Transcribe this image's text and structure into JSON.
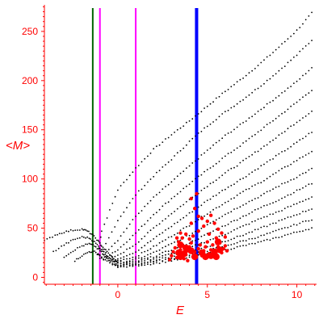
{
  "chart_data": {
    "type": "scatter",
    "title": "",
    "xlabel": "E",
    "ylabel": "<M>",
    "xlim": [
      -4.1,
      11.1
    ],
    "ylim": [
      -7,
      277
    ],
    "xticks": [
      0,
      5,
      10
    ],
    "yticks": [
      0,
      50,
      100,
      150,
      200,
      250
    ],
    "grid": false,
    "legend": "none",
    "colors": {
      "axes": "#ff0000",
      "band_points": "#000000",
      "highlight_points": "#ff0000",
      "line_green": "#006400",
      "line_magenta": "#ff00ff",
      "line_blue": "#0000ff"
    },
    "vertical_lines": [
      {
        "x": -1.4,
        "color": "#006400",
        "width": 2
      },
      {
        "x": -1.0,
        "color": "#ff00ff",
        "width": 2
      },
      {
        "x": 1.0,
        "color": "#ff00ff",
        "width": 2
      },
      {
        "x": 4.4,
        "color": "#0000ff",
        "width": 4
      }
    ],
    "series": [
      {
        "values": [
          [
            -1.1,
            24
          ],
          [
            -0.9,
            47
          ],
          [
            0,
            89
          ],
          [
            1,
            111
          ],
          [
            2,
            130
          ],
          [
            3,
            145
          ],
          [
            4,
            159
          ],
          [
            5,
            174
          ],
          [
            6,
            189
          ],
          [
            7,
            203
          ],
          [
            8,
            218
          ],
          [
            9,
            234
          ],
          [
            10,
            251
          ],
          [
            11,
            272
          ]
        ]
      },
      {
        "values": [
          [
            -1.0,
            22
          ],
          [
            0,
            58
          ],
          [
            1,
            84
          ],
          [
            2,
            103
          ],
          [
            3,
            120
          ],
          [
            4,
            138
          ],
          [
            5,
            154
          ],
          [
            6,
            168
          ],
          [
            7,
            181
          ],
          [
            8,
            195
          ],
          [
            9,
            210
          ],
          [
            10,
            226
          ],
          [
            11,
            244
          ]
        ]
      },
      {
        "values": [
          [
            -1.0,
            20
          ],
          [
            0,
            38
          ],
          [
            1,
            62
          ],
          [
            2,
            81
          ],
          [
            3,
            97
          ],
          [
            4,
            113
          ],
          [
            5,
            129
          ],
          [
            6,
            144
          ],
          [
            7,
            157
          ],
          [
            8,
            171
          ],
          [
            9,
            185
          ],
          [
            10,
            199
          ],
          [
            11,
            216
          ]
        ]
      },
      {
        "values": [
          [
            -0.9,
            19
          ],
          [
            0,
            28
          ],
          [
            1,
            45
          ],
          [
            2,
            64
          ],
          [
            3,
            80
          ],
          [
            4,
            95
          ],
          [
            5,
            109
          ],
          [
            6,
            123
          ],
          [
            7,
            136
          ],
          [
            8,
            150
          ],
          [
            9,
            164
          ],
          [
            10,
            178
          ],
          [
            11,
            193
          ]
        ]
      },
      {
        "values": [
          [
            -0.8,
            18
          ],
          [
            0,
            22
          ],
          [
            1,
            34
          ],
          [
            2,
            50
          ],
          [
            3,
            65
          ],
          [
            4,
            79
          ],
          [
            5,
            93
          ],
          [
            6,
            106
          ],
          [
            7,
            118
          ],
          [
            8,
            131
          ],
          [
            9,
            144
          ],
          [
            10,
            158
          ],
          [
            11,
            171
          ]
        ]
      },
      {
        "values": [
          [
            -0.5,
            17
          ],
          [
            0,
            19
          ],
          [
            1,
            26
          ],
          [
            2,
            39
          ],
          [
            3,
            52
          ],
          [
            4,
            65
          ],
          [
            5,
            78
          ],
          [
            6,
            90
          ],
          [
            7,
            101
          ],
          [
            8,
            113
          ],
          [
            9,
            125
          ],
          [
            10,
            137
          ],
          [
            11,
            150
          ]
        ]
      },
      {
        "values": [
          [
            -0.3,
            16
          ],
          [
            0,
            17
          ],
          [
            1,
            21
          ],
          [
            2,
            31
          ],
          [
            3,
            42
          ],
          [
            4,
            53
          ],
          [
            5,
            65
          ],
          [
            6,
            76
          ],
          [
            7,
            87
          ],
          [
            8,
            97
          ],
          [
            9,
            108
          ],
          [
            10,
            119
          ],
          [
            11,
            130
          ]
        ]
      },
      {
        "values": [
          [
            0,
            15
          ],
          [
            1,
            18
          ],
          [
            2,
            25
          ],
          [
            3,
            34
          ],
          [
            4,
            43
          ],
          [
            5,
            54
          ],
          [
            6,
            64
          ],
          [
            7,
            74
          ],
          [
            8,
            83
          ],
          [
            9,
            93
          ],
          [
            10,
            102
          ],
          [
            11,
            112
          ]
        ]
      },
      {
        "values": [
          [
            0,
            14
          ],
          [
            1,
            16
          ],
          [
            2,
            21
          ],
          [
            3,
            28
          ],
          [
            4,
            35
          ],
          [
            5,
            44
          ],
          [
            6,
            53
          ],
          [
            7,
            62
          ],
          [
            8,
            71
          ],
          [
            9,
            79
          ],
          [
            10,
            88
          ],
          [
            11,
            97
          ]
        ]
      },
      {
        "values": [
          [
            0,
            13
          ],
          [
            1,
            15
          ],
          [
            2,
            19
          ],
          [
            3,
            24
          ],
          [
            4,
            30
          ],
          [
            5,
            37
          ],
          [
            6,
            44
          ],
          [
            7,
            52
          ],
          [
            8,
            60
          ],
          [
            9,
            67
          ],
          [
            10,
            75
          ],
          [
            11,
            83
          ]
        ]
      },
      {
        "values": [
          [
            0,
            12
          ],
          [
            1,
            14
          ],
          [
            2,
            17
          ],
          [
            3,
            21
          ],
          [
            4,
            26
          ],
          [
            5,
            31
          ],
          [
            6,
            37
          ],
          [
            7,
            43
          ],
          [
            8,
            50
          ],
          [
            9,
            57
          ],
          [
            10,
            64
          ],
          [
            11,
            71
          ]
        ]
      },
      {
        "values": [
          [
            0,
            11
          ],
          [
            1,
            13
          ],
          [
            2,
            16
          ],
          [
            3,
            19
          ],
          [
            4,
            23
          ],
          [
            5,
            27
          ],
          [
            6,
            32
          ],
          [
            7,
            37
          ],
          [
            8,
            42
          ],
          [
            9,
            48
          ],
          [
            10,
            54
          ],
          [
            11,
            60
          ]
        ]
      },
      {
        "values": [
          [
            0,
            10
          ],
          [
            1,
            12
          ],
          [
            2,
            14
          ],
          [
            3,
            17
          ],
          [
            4,
            20
          ],
          [
            5,
            24
          ],
          [
            6,
            28
          ],
          [
            7,
            32
          ],
          [
            8,
            36
          ],
          [
            9,
            41
          ],
          [
            10,
            46
          ],
          [
            11,
            51
          ]
        ]
      },
      {
        "values": [
          [
            -4.1,
            37
          ],
          [
            -3.5,
            43
          ],
          [
            -3.0,
            46
          ],
          [
            -2.5,
            48
          ],
          [
            -2.0,
            49
          ],
          [
            -1.7,
            47
          ],
          [
            -1.4,
            43
          ],
          [
            -1.1,
            37
          ],
          [
            -0.9,
            32
          ],
          [
            -0.6,
            26
          ],
          [
            -0.3,
            20
          ],
          [
            0,
            14
          ]
        ]
      },
      {
        "values": [
          [
            -3.6,
            26
          ],
          [
            -3.0,
            33
          ],
          [
            -2.5,
            38
          ],
          [
            -2.0,
            41
          ],
          [
            -1.6,
            40
          ],
          [
            -1.3,
            36
          ],
          [
            -1.0,
            30
          ],
          [
            -0.7,
            24
          ],
          [
            -0.4,
            19
          ],
          [
            0,
            13
          ]
        ]
      },
      {
        "values": [
          [
            -3.0,
            21
          ],
          [
            -2.5,
            27
          ],
          [
            -2.0,
            32
          ],
          [
            -1.6,
            34
          ],
          [
            -1.3,
            32
          ],
          [
            -1.0,
            27
          ],
          [
            -0.7,
            21
          ],
          [
            -0.4,
            16
          ],
          [
            0,
            12
          ]
        ]
      },
      {
        "values": [
          [
            -2.4,
            17
          ],
          [
            -2.0,
            22
          ],
          [
            -1.6,
            26
          ],
          [
            -1.3,
            26
          ],
          [
            -1.0,
            22
          ],
          [
            -0.6,
            16
          ],
          [
            0,
            11
          ]
        ]
      }
    ],
    "highlight_points": [
      [
        2.9,
        18
      ],
      [
        3.0,
        22
      ],
      [
        3.1,
        26
      ],
      [
        3.2,
        30
      ],
      [
        3.3,
        20
      ],
      [
        3.4,
        24
      ],
      [
        3.5,
        28
      ],
      [
        3.6,
        33
      ],
      [
        3.7,
        19
      ],
      [
        3.8,
        23
      ],
      [
        3.9,
        27
      ],
      [
        4.0,
        31
      ],
      [
        4.1,
        35
      ],
      [
        4.2,
        21
      ],
      [
        4.3,
        26
      ],
      [
        4.5,
        29
      ],
      [
        4.6,
        33
      ],
      [
        4.7,
        22
      ],
      [
        4.8,
        27
      ],
      [
        4.9,
        31
      ],
      [
        5.0,
        36
      ],
      [
        5.1,
        24
      ],
      [
        5.2,
        28
      ],
      [
        5.3,
        33
      ],
      [
        5.4,
        23
      ],
      [
        5.5,
        27
      ],
      [
        5.6,
        31
      ],
      [
        5.7,
        35
      ],
      [
        5.8,
        25
      ],
      [
        5.9,
        29
      ],
      [
        6.0,
        32
      ],
      [
        6.1,
        27
      ],
      [
        3.4,
        36
      ],
      [
        3.6,
        40
      ],
      [
        3.8,
        44
      ],
      [
        4.0,
        39
      ],
      [
        4.2,
        42
      ],
      [
        4.5,
        47
      ],
      [
        4.8,
        52
      ],
      [
        5.0,
        57
      ],
      [
        5.2,
        63
      ],
      [
        5.4,
        55
      ],
      [
        5.6,
        49
      ],
      [
        5.8,
        45
      ],
      [
        6.0,
        41
      ],
      [
        4.3,
        70
      ],
      [
        4.5,
        62
      ],
      [
        4.1,
        80
      ],
      [
        4.4,
        85
      ],
      [
        4.7,
        60
      ],
      [
        3.3,
        40
      ],
      [
        3.5,
        45
      ],
      [
        4.1,
        55
      ],
      [
        5.1,
        44
      ],
      [
        5.5,
        40
      ],
      [
        3.9,
        17
      ]
    ],
    "highlight_big": [
      [
        3.4,
        25
      ],
      [
        3.5,
        21
      ],
      [
        3.8,
        30
      ],
      [
        4.1,
        27
      ],
      [
        4.3,
        21
      ],
      [
        4.7,
        25
      ],
      [
        4.9,
        21
      ],
      [
        5.2,
        22
      ],
      [
        5.4,
        26
      ],
      [
        5.5,
        21
      ],
      [
        5.7,
        28
      ],
      [
        3.7,
        24
      ],
      [
        5.6,
        36
      ],
      [
        3.5,
        33
      ]
    ]
  }
}
